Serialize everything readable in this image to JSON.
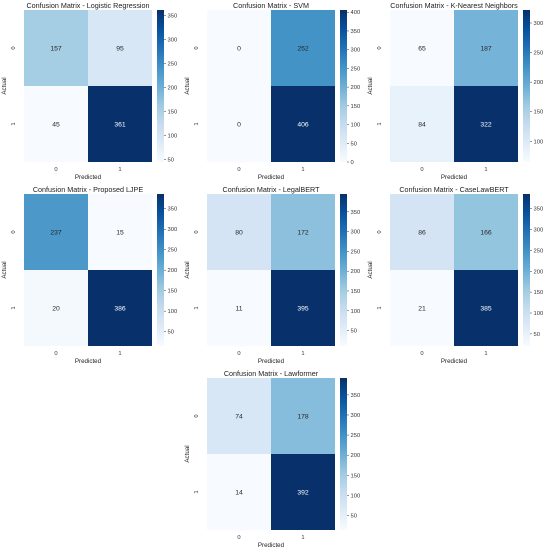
{
  "chart_data": [
    {
      "type": "heatmap",
      "title": "Confusion Matrix - Logistic Regression",
      "xlabel": "Predicted",
      "ylabel": "Actual",
      "x_categories": [
        "0",
        "1"
      ],
      "y_categories": [
        "0",
        "1"
      ],
      "values": [
        [
          157,
          95
        ],
        [
          45,
          361
        ]
      ],
      "colorbar": {
        "min": 45,
        "max": 361,
        "ticks": [
          50,
          100,
          150,
          200,
          250,
          300,
          350
        ]
      },
      "colormap": "Blues"
    },
    {
      "type": "heatmap",
      "title": "Confusion Matrix - SVM",
      "xlabel": "Predicted",
      "ylabel": "Actual",
      "x_categories": [
        "0",
        "1"
      ],
      "y_categories": [
        "0",
        "1"
      ],
      "values": [
        [
          0,
          252
        ],
        [
          0,
          406
        ]
      ],
      "colorbar": {
        "min": 0,
        "max": 406,
        "ticks": [
          0,
          50,
          100,
          150,
          200,
          250,
          300,
          350,
          400
        ]
      },
      "colormap": "Blues"
    },
    {
      "type": "heatmap",
      "title": "Confusion Matrix - K-Nearest Neighbors",
      "xlabel": "Predicted",
      "ylabel": "Actual",
      "x_categories": [
        "0",
        "1"
      ],
      "y_categories": [
        "0",
        "1"
      ],
      "values": [
        [
          65,
          187
        ],
        [
          84,
          322
        ]
      ],
      "colorbar": {
        "min": 65,
        "max": 322,
        "ticks": [
          100,
          150,
          200,
          250,
          300
        ]
      },
      "colormap": "Blues"
    },
    {
      "type": "heatmap",
      "title": "Confusion Matrix - Proposed LJPE",
      "xlabel": "Predicted",
      "ylabel": "Actual",
      "x_categories": [
        "0",
        "1"
      ],
      "y_categories": [
        "0",
        "1"
      ],
      "values": [
        [
          237,
          15
        ],
        [
          20,
          386
        ]
      ],
      "colorbar": {
        "min": 15,
        "max": 386,
        "ticks": [
          50,
          100,
          150,
          200,
          250,
          300,
          350
        ]
      },
      "colormap": "Blues"
    },
    {
      "type": "heatmap",
      "title": "Confusion Matrix - LegalBERT",
      "xlabel": "Predicted",
      "ylabel": "Actual",
      "x_categories": [
        "0",
        "1"
      ],
      "y_categories": [
        "0",
        "1"
      ],
      "values": [
        [
          80,
          172
        ],
        [
          11,
          395
        ]
      ],
      "colorbar": {
        "min": 11,
        "max": 395,
        "ticks": [
          50,
          100,
          150,
          200,
          250,
          300,
          350
        ]
      },
      "colormap": "Blues"
    },
    {
      "type": "heatmap",
      "title": "Confusion Matrix - CaseLawBERT",
      "xlabel": "Predicted",
      "ylabel": "Actual",
      "x_categories": [
        "0",
        "1"
      ],
      "y_categories": [
        "0",
        "1"
      ],
      "values": [
        [
          86,
          166
        ],
        [
          21,
          385
        ]
      ],
      "colorbar": {
        "min": 21,
        "max": 385,
        "ticks": [
          50,
          100,
          150,
          200,
          250,
          300,
          350
        ]
      },
      "colormap": "Blues"
    },
    {
      "type": "heatmap",
      "title": "Confusion Matrix - Lawformer",
      "xlabel": "Predicted",
      "ylabel": "Actual",
      "x_categories": [
        "0",
        "1"
      ],
      "y_categories": [
        "0",
        "1"
      ],
      "values": [
        [
          74,
          178
        ],
        [
          14,
          392
        ]
      ],
      "colorbar": {
        "min": 14,
        "max": 392,
        "ticks": [
          50,
          100,
          150,
          200,
          250,
          300,
          350
        ]
      },
      "colormap": "Blues"
    }
  ]
}
